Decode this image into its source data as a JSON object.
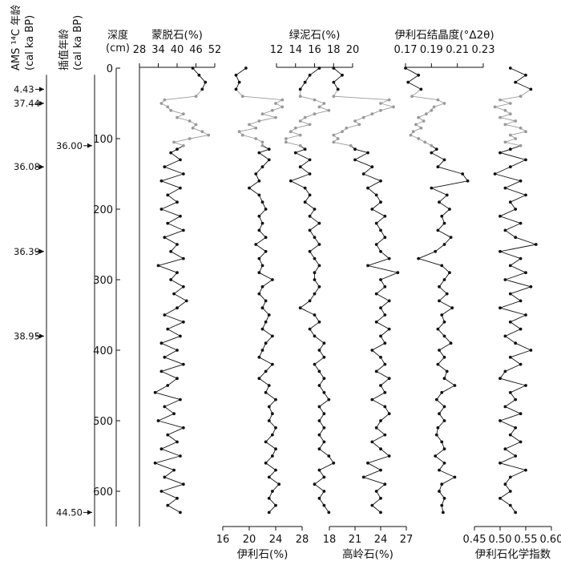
{
  "chart_data": {
    "type": "line",
    "depth_axis": {
      "label": "深度",
      "unit": "(cm)",
      "range": [
        0,
        650
      ],
      "ticks": [
        0,
        100,
        200,
        300,
        400,
        500,
        600
      ],
      "orientation": "inverted-vertical"
    },
    "age_columns": [
      {
        "label": "AMS ¹⁴C 年龄",
        "sublabel": "(cal ka BP)",
        "markers": [
          {
            "age": "4.43",
            "depth": 30
          },
          {
            "age": "37.44",
            "depth": 50
          },
          {
            "age": "36.08",
            "depth": 140
          },
          {
            "age": "36.39",
            "depth": 260
          },
          {
            "age": "38.95",
            "depth": 380
          }
        ]
      },
      {
        "label": "插值年龄",
        "sublabel": "(cal ka BP)",
        "markers": [
          {
            "age": "36.00",
            "depth": 110
          },
          {
            "age": "44.50",
            "depth": 630
          }
        ]
      }
    ],
    "highlight_depth_range": [
      40,
      110
    ],
    "series": [
      {
        "name": "蒙脱石(%)",
        "axis_position": "top",
        "range": [
          28,
          52
        ],
        "ticks": [
          "28",
          "34",
          "40",
          "46",
          "52"
        ],
        "ticklabels": [
          "28",
          "34",
          "40",
          "46",
          "52"
        ],
        "depths": [
          0,
          10,
          20,
          30,
          40,
          45,
          50,
          55,
          60,
          65,
          70,
          75,
          80,
          85,
          90,
          95,
          100,
          105,
          110,
          115,
          120,
          130,
          140,
          150,
          160,
          170,
          180,
          190,
          200,
          210,
          220,
          230,
          240,
          250,
          260,
          270,
          280,
          290,
          300,
          310,
          320,
          330,
          340,
          350,
          360,
          370,
          380,
          390,
          400,
          410,
          420,
          430,
          440,
          450,
          460,
          470,
          480,
          490,
          500,
          510,
          520,
          530,
          540,
          550,
          560,
          570,
          580,
          590,
          600,
          610,
          620,
          630
        ],
        "values": [
          45,
          47,
          49,
          48,
          46,
          36,
          35,
          37,
          38,
          42,
          40,
          44,
          46,
          45,
          48,
          50,
          44,
          39,
          42,
          40,
          38,
          41,
          36,
          42,
          35,
          41,
          37,
          40,
          35,
          41,
          37,
          42,
          36,
          40,
          38,
          42,
          34,
          40,
          38,
          42,
          39,
          43,
          40,
          36,
          42,
          37,
          41,
          35,
          40,
          36,
          42,
          35,
          40,
          37,
          33,
          41,
          36,
          39,
          34,
          42,
          37,
          40,
          35,
          41,
          33,
          39,
          36,
          42,
          35,
          40,
          37,
          41
        ]
      },
      {
        "name": "伊利石(%)",
        "axis_position": "bottom",
        "range": [
          16,
          28
        ],
        "ticks": [
          "16",
          "20",
          "24",
          "28"
        ],
        "ticklabels": [
          "16",
          "20",
          "24",
          "28"
        ],
        "depths": [
          0,
          10,
          20,
          30,
          40,
          45,
          50,
          55,
          60,
          65,
          70,
          75,
          80,
          85,
          90,
          95,
          100,
          105,
          110,
          115,
          120,
          130,
          140,
          150,
          160,
          170,
          180,
          190,
          200,
          210,
          220,
          230,
          240,
          250,
          260,
          270,
          280,
          290,
          300,
          310,
          320,
          330,
          340,
          350,
          360,
          370,
          380,
          390,
          400,
          410,
          420,
          430,
          440,
          450,
          460,
          470,
          480,
          490,
          500,
          510,
          520,
          530,
          540,
          550,
          560,
          570,
          580,
          590,
          600,
          610,
          620,
          630
        ],
        "values": [
          19.5,
          18,
          18.5,
          18,
          19,
          25,
          24,
          25,
          23.5,
          22,
          24,
          21.5,
          20,
          21,
          18.5,
          19,
          21,
          22,
          22,
          23,
          21.5,
          23,
          22,
          21,
          21.5,
          20,
          21.5,
          22,
          22.5,
          21.5,
          22,
          21.5,
          22.5,
          21,
          22.5,
          21.5,
          22,
          21.5,
          23.5,
          22,
          21.5,
          22.5,
          22,
          23,
          22.5,
          22,
          23.5,
          22.5,
          22,
          21.5,
          23.5,
          22.5,
          21.5,
          23,
          22.5,
          24,
          23,
          23.5,
          23,
          24,
          23.5,
          22.5,
          24,
          23.5,
          22.5,
          24,
          23,
          24.5,
          23.5,
          23,
          24,
          23
        ]
      },
      {
        "name": "绿泥石(%)",
        "axis_position": "top",
        "range": [
          12,
          20
        ],
        "ticks": [
          "12",
          "14",
          "16",
          "18",
          "20"
        ],
        "ticklabels": [
          "12",
          "14",
          "16",
          "18",
          "20"
        ],
        "depths": [
          0,
          10,
          20,
          30,
          40,
          45,
          50,
          55,
          60,
          65,
          70,
          75,
          80,
          85,
          90,
          95,
          100,
          105,
          110,
          115,
          120,
          130,
          140,
          150,
          160,
          170,
          180,
          190,
          200,
          210,
          220,
          230,
          240,
          250,
          260,
          270,
          280,
          290,
          300,
          310,
          320,
          330,
          340,
          350,
          360,
          370,
          380,
          390,
          400,
          410,
          420,
          430,
          440,
          450,
          460,
          470,
          480,
          490,
          500,
          510,
          520,
          530,
          540,
          550,
          560,
          570,
          580,
          590,
          600,
          610,
          620,
          630
        ],
        "values": [
          16.5,
          15.5,
          15,
          14.5,
          14.5,
          16,
          17,
          16.5,
          17.5,
          16,
          15,
          14.5,
          15.5,
          14,
          13.5,
          14.5,
          13,
          13,
          14.5,
          15,
          14,
          15.5,
          14.5,
          15.5,
          13.5,
          15,
          15.5,
          15,
          16,
          15.5,
          16.5,
          15.5,
          16,
          16.5,
          15.5,
          16,
          16.5,
          16,
          16,
          16.5,
          16,
          15.5,
          14.5,
          16,
          16.5,
          15.5,
          16,
          17,
          16.5,
          17,
          16,
          16.5,
          17,
          16.5,
          17,
          17.5,
          16.5,
          17,
          16.5,
          17,
          16.5,
          17,
          16.5,
          17.5,
          18,
          16.5,
          17,
          16,
          17,
          16.5,
          17,
          17.5
        ]
      },
      {
        "name": "高岭石(%)",
        "axis_position": "bottom",
        "range": [
          18,
          27
        ],
        "ticks": [
          "18",
          "21",
          "24",
          "27"
        ],
        "ticklabels": [
          "18",
          "21",
          "24",
          "27"
        ],
        "depths": [
          0,
          10,
          20,
          30,
          40,
          45,
          50,
          55,
          60,
          65,
          70,
          75,
          80,
          85,
          90,
          95,
          100,
          105,
          110,
          115,
          120,
          130,
          140,
          150,
          160,
          170,
          180,
          190,
          200,
          210,
          220,
          230,
          240,
          250,
          260,
          270,
          280,
          290,
          300,
          310,
          320,
          330,
          340,
          350,
          360,
          370,
          380,
          390,
          400,
          410,
          420,
          430,
          440,
          450,
          460,
          470,
          480,
          490,
          500,
          510,
          520,
          530,
          540,
          550,
          560,
          570,
          580,
          590,
          600,
          610,
          620,
          630
        ],
        "values": [
          18.5,
          19.5,
          18.5,
          19,
          18.5,
          25,
          24,
          25.5,
          24,
          23,
          22,
          21,
          21.5,
          20,
          19.5,
          18.5,
          19,
          18.5,
          20.5,
          21,
          22.5,
          21,
          23,
          22,
          24,
          22.5,
          23.5,
          24,
          23,
          24.5,
          23.5,
          24,
          24.5,
          23.5,
          24,
          25,
          22.5,
          26,
          24,
          24.5,
          23.5,
          25,
          24,
          24.5,
          23.5,
          25,
          24,
          24.5,
          23,
          24,
          24.5,
          23.5,
          25,
          24,
          24.5,
          23,
          24.5,
          25,
          24,
          23.5,
          24.5,
          23,
          24,
          25,
          22.5,
          24,
          22,
          24.5,
          23.5,
          24,
          23,
          24
        ]
      },
      {
        "name": "伊利石结晶度(°Δ2θ)",
        "axis_position": "top",
        "range": [
          0.17,
          0.23
        ],
        "ticks": [
          "0.17",
          "0.19",
          "0.21",
          "0.23"
        ],
        "ticklabels": [
          "0.17",
          "0.19",
          "0.21",
          "0.23"
        ],
        "depths": [
          0,
          10,
          20,
          30,
          40,
          45,
          50,
          55,
          60,
          65,
          70,
          75,
          80,
          85,
          90,
          95,
          100,
          105,
          110,
          115,
          120,
          130,
          140,
          150,
          160,
          170,
          180,
          190,
          200,
          210,
          220,
          230,
          240,
          250,
          260,
          270,
          280,
          290,
          300,
          310,
          320,
          330,
          340,
          350,
          360,
          370,
          380,
          390,
          400,
          410,
          420,
          430,
          440,
          450,
          460,
          470,
          480,
          490,
          500,
          510,
          520,
          530,
          540,
          550,
          560,
          570,
          580,
          590,
          600,
          610,
          620,
          630
        ],
        "values": [
          0.17,
          0.18,
          0.172,
          0.182,
          0.175,
          0.195,
          0.2,
          0.192,
          0.19,
          0.186,
          0.18,
          0.184,
          0.178,
          0.182,
          0.176,
          0.174,
          0.18,
          0.185,
          0.19,
          0.194,
          0.19,
          0.2,
          0.195,
          0.214,
          0.218,
          0.19,
          0.202,
          0.196,
          0.204,
          0.198,
          0.2,
          0.195,
          0.205,
          0.2,
          0.193,
          0.18,
          0.198,
          0.204,
          0.2,
          0.196,
          0.202,
          0.196,
          0.206,
          0.198,
          0.2,
          0.195,
          0.2,
          0.205,
          0.196,
          0.2,
          0.195,
          0.202,
          0.2,
          0.208,
          0.198,
          0.194,
          0.2,
          0.196,
          0.2,
          0.195,
          0.194,
          0.198,
          0.2,
          0.193,
          0.2,
          0.196,
          0.208,
          0.198,
          0.196,
          0.2,
          0.198,
          0.199
        ]
      },
      {
        "name": "伊利石化学指数",
        "axis_position": "bottom",
        "range": [
          0.45,
          0.6
        ],
        "ticks": [
          "0.45",
          "0.50",
          "0.55",
          "0.60"
        ],
        "ticklabels": [
          "0.45",
          "0.50",
          "0.55",
          "0.60"
        ],
        "depths": [
          0,
          10,
          20,
          30,
          40,
          45,
          50,
          55,
          60,
          65,
          70,
          75,
          80,
          85,
          90,
          95,
          100,
          105,
          110,
          115,
          120,
          130,
          140,
          150,
          160,
          170,
          180,
          190,
          200,
          210,
          220,
          230,
          240,
          250,
          260,
          270,
          280,
          290,
          300,
          310,
          320,
          330,
          340,
          350,
          360,
          370,
          380,
          390,
          400,
          410,
          420,
          430,
          440,
          450,
          460,
          470,
          480,
          490,
          500,
          510,
          520,
          530,
          540,
          550,
          560,
          570,
          580,
          590,
          600,
          610,
          620,
          630
        ],
        "values": [
          0.52,
          0.55,
          0.53,
          0.56,
          0.54,
          0.5,
          0.52,
          0.49,
          0.51,
          0.52,
          0.5,
          0.53,
          0.51,
          0.54,
          0.55,
          0.52,
          0.53,
          0.51,
          0.54,
          0.52,
          0.5,
          0.55,
          0.52,
          0.49,
          0.54,
          0.51,
          0.55,
          0.52,
          0.53,
          0.5,
          0.54,
          0.51,
          0.53,
          0.57,
          0.5,
          0.54,
          0.52,
          0.55,
          0.51,
          0.56,
          0.52,
          0.54,
          0.5,
          0.55,
          0.52,
          0.54,
          0.51,
          0.53,
          0.56,
          0.52,
          0.54,
          0.51,
          0.5,
          0.55,
          0.52,
          0.53,
          0.51,
          0.54,
          0.5,
          0.53,
          0.52,
          0.54,
          0.51,
          0.53,
          0.5,
          0.55,
          0.52,
          0.51,
          0.52,
          0.5,
          0.52,
          0.53
        ]
      }
    ]
  }
}
